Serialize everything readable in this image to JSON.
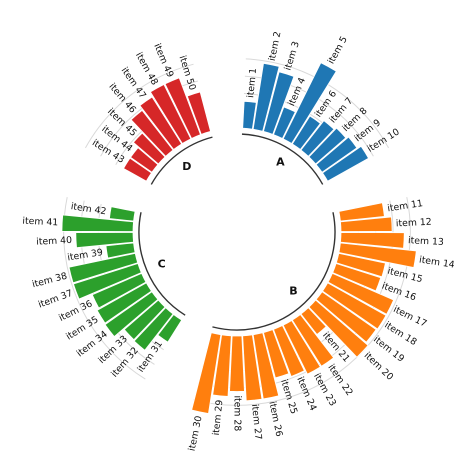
{
  "chart_data": {
    "type": "bar",
    "subtype": "circular-grouped",
    "title": "",
    "xlabel": "",
    "ylabel": "",
    "ylim": [
      -100,
      120
    ],
    "reference_lines": [
      20,
      40,
      60,
      80
    ],
    "grid": false,
    "groups": [
      {
        "name": "A",
        "color": "#1f77b4",
        "categories": [
          "item 1",
          "item 2",
          "item 3",
          "item 4",
          "item 5",
          "item 6",
          "item 7",
          "item 8",
          "item 9",
          "item 10"
        ],
        "values": [
          31,
          77,
          71,
          34,
          98,
          38,
          43,
          46,
          49,
          54
        ]
      },
      {
        "name": "B",
        "color": "#ff7f0e",
        "categories": [
          "item 11",
          "item 12",
          "item 13",
          "item 14",
          "item 15",
          "item 16",
          "item 17",
          "item 18",
          "item 19",
          "item 20",
          "item 21",
          "item 22",
          "item 23",
          "item 24",
          "item 25",
          "item 26",
          "item 27",
          "item 28",
          "item 29",
          "item 30"
        ],
        "values": [
          51,
          59,
          73,
          88,
          55,
          54,
          77,
          77,
          76,
          80,
          30,
          63,
          63,
          58,
          54,
          75,
          75,
          64,
          70,
          92
        ]
      },
      {
        "name": "C",
        "color": "#2ca02c",
        "categories": [
          "item 31",
          "item 32",
          "item 33",
          "item 34",
          "item 35",
          "item 36",
          "item 37",
          "item 38",
          "item 39",
          "item 40",
          "item 41",
          "item 42"
        ],
        "values": [
          30,
          53,
          52,
          66,
          65,
          62,
          78,
          78,
          32,
          66,
          82,
          28
        ]
      },
      {
        "name": "D",
        "color": "#d62728",
        "categories": [
          "item 43",
          "item 44",
          "item 45",
          "item 46",
          "item 47",
          "item 48",
          "item 49",
          "item 50"
        ],
        "values": [
          30,
          30,
          38,
          58,
          64,
          70,
          70,
          47
        ]
      }
    ]
  }
}
